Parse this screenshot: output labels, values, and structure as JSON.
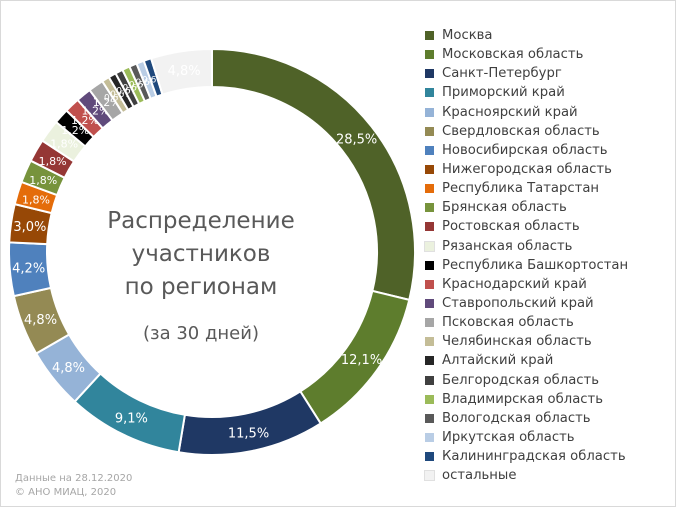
{
  "chart_data": {
    "type": "pie",
    "title": "Распределение участников по регионам",
    "title_lines": [
      "Распределение",
      "участников",
      "по регионам"
    ],
    "subtitle": "(за 30 дней)",
    "legend_position": "right",
    "categories": [
      "Москва",
      "Московская область",
      "Санкт-Петербург",
      "Приморский край",
      "Красноярский край",
      "Свердловская область",
      "Новосибирская область",
      "Нижегородская область",
      "Республика Татарстан",
      "Брянская область",
      "Ростовская область",
      "Рязанская область",
      "Республика Башкортостан",
      "Краснодарский край",
      "Ставропольский край",
      "Псковская область",
      "Челябинская область",
      "Алтайский край",
      "Белгородская область",
      "Владимирская область",
      "Вологодская область",
      "Иркутская область",
      "Калининградская область",
      "остальные"
    ],
    "values": [
      28.5,
      12.1,
      11.5,
      9.1,
      4.8,
      4.8,
      4.2,
      3.0,
      1.8,
      1.8,
      1.8,
      1.8,
      1.2,
      1.2,
      1.2,
      1.2,
      0.6,
      0.6,
      0.6,
      0.6,
      0.6,
      0.6,
      0.6,
      4.8
    ],
    "data_labels": [
      "28,5%",
      "12,1%",
      "11,5%",
      "9,1%",
      "4,8%",
      "4,8%",
      "4,2%",
      "3,0%",
      "1,8%",
      "1,8%",
      "1,8%",
      "1,8%",
      "1,2%",
      "1,2%",
      "1,2%",
      "1,2%",
      "0,6%",
      "0,6%",
      "0,6%",
      "0,6%",
      "0,6%",
      "0,6%",
      "0,6%",
      "4,8%"
    ],
    "colors": [
      "#4f6228",
      "#5e7d2d",
      "#1f3864",
      "#31859c",
      "#95b3d7",
      "#948a54",
      "#4f81bd",
      "#974806",
      "#e46c0a",
      "#77933c",
      "#953735",
      "#ebf1de",
      "#000000",
      "#c0504d",
      "#604a7b",
      "#a6a6a6",
      "#c4bd97",
      "#262626",
      "#404040",
      "#9bbb59",
      "#595959",
      "#b9cde5",
      "#1f497d",
      "#f2f2f2"
    ],
    "label_colors": [
      "#ffffff",
      "#ffffff",
      "#ffffff",
      "#ffffff",
      "#ffffff",
      "#ffffff",
      "#ffffff",
      "#ffffff",
      "#ffffff",
      "#ffffff",
      "#ffffff",
      "#ffffff",
      "#ffffff",
      "#ffffff",
      "#ffffff",
      "#ffffff",
      "#ffffff",
      "#ffffff",
      "#ffffff",
      "#ffffff",
      "#ffffff",
      "#ffffff",
      "#ffffff",
      "#ffffff"
    ]
  },
  "footer": {
    "date_line": "Данные на 28.12.2020",
    "copyright_line": "© АНО МИАЦ, 2020"
  }
}
